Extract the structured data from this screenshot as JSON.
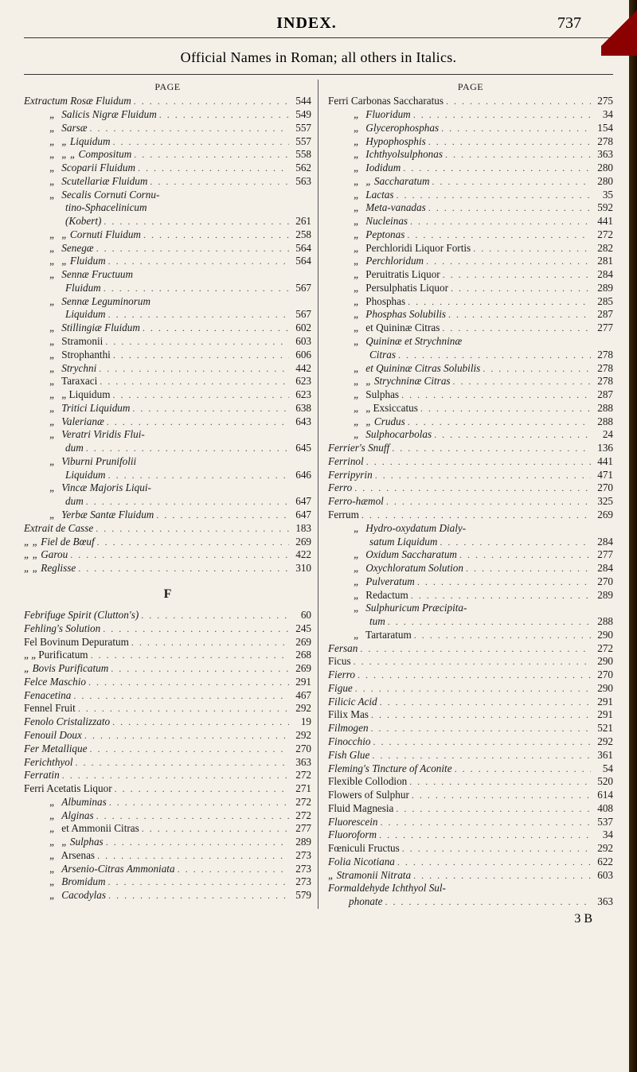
{
  "header": {
    "title": "INDEX.",
    "page": "737"
  },
  "subtitle": "Official Names in Roman; all others in Italics.",
  "page_head": "PAGE",
  "signature": "3 B",
  "section_letter": "F",
  "left_col": [
    {
      "t": "head",
      "text": "PAGE"
    },
    {
      "t": "e",
      "label": "Extractum Rosæ Fluidum",
      "italic": true,
      "p": "544",
      "ind": 0
    },
    {
      "t": "e",
      "label": "Salicis Nigræ Fluidum",
      "italic": true,
      "p": "549",
      "ind": 1,
      "ditto": true
    },
    {
      "t": "e",
      "label": "Sarsæ",
      "italic": true,
      "p": "557",
      "ind": 1,
      "ditto": true
    },
    {
      "t": "e",
      "label": "„   Liquidum",
      "italic": true,
      "p": "557",
      "ind": 1,
      "ditto": true
    },
    {
      "t": "e",
      "label": "„   „  Compositum",
      "italic": true,
      "p": "558",
      "ind": 1,
      "ditto": true
    },
    {
      "t": "e",
      "label": "Scoparii Fluidum",
      "italic": true,
      "p": "562",
      "ind": 1,
      "ditto": true
    },
    {
      "t": "e",
      "label": "Scutellariæ Fluidum",
      "italic": true,
      "p": "563",
      "ind": 1,
      "ditto": true
    },
    {
      "t": "e",
      "label": "Secalis Cornuti Cornu-",
      "italic": true,
      "p": "",
      "ind": 1,
      "ditto": true,
      "nodots": true
    },
    {
      "t": "e",
      "label": "tino-Sphacelinicum",
      "italic": true,
      "p": "",
      "ind": 2,
      "nodots": true
    },
    {
      "t": "e",
      "label": "(Kobert)",
      "italic": true,
      "p": "261",
      "ind": 2
    },
    {
      "t": "e",
      "label": "„  Cornuti Fluidum",
      "italic": true,
      "p": "258",
      "ind": 1,
      "ditto": true
    },
    {
      "t": "e",
      "label": "Senegæ",
      "italic": true,
      "p": "564",
      "ind": 1,
      "ditto": true
    },
    {
      "t": "e",
      "label": "„   Fluidum",
      "italic": true,
      "p": "564",
      "ind": 1,
      "ditto": true
    },
    {
      "t": "e",
      "label": "Sennæ Fructuum",
      "italic": true,
      "p": "",
      "ind": 1,
      "ditto": true,
      "nodots": true
    },
    {
      "t": "e",
      "label": "Fluidum",
      "italic": true,
      "p": "567",
      "ind": 2
    },
    {
      "t": "e",
      "label": "Sennæ Leguminorum",
      "italic": true,
      "p": "",
      "ind": 1,
      "ditto": true,
      "nodots": true
    },
    {
      "t": "e",
      "label": "Liquidum",
      "italic": true,
      "p": "567",
      "ind": 2
    },
    {
      "t": "e",
      "label": "Stillingiæ Fluidum",
      "italic": true,
      "p": "602",
      "ind": 1,
      "ditto": true
    },
    {
      "t": "e",
      "label": "Stramonii",
      "p": "603",
      "ind": 1,
      "ditto": true
    },
    {
      "t": "e",
      "label": "Strophanthi",
      "p": "606",
      "ind": 1,
      "ditto": true
    },
    {
      "t": "e",
      "label": "Strychni",
      "italic": true,
      "p": "442",
      "ind": 1,
      "ditto": true
    },
    {
      "t": "e",
      "label": "Taraxaci",
      "p": "623",
      "ind": 1,
      "ditto": true
    },
    {
      "t": "e",
      "label": "„   Liquidum",
      "p": "623",
      "ind": 1,
      "ditto": true
    },
    {
      "t": "e",
      "label": "Tritici Liquidum",
      "italic": true,
      "p": "638",
      "ind": 1,
      "ditto": true
    },
    {
      "t": "e",
      "label": "Valerianæ",
      "italic": true,
      "p": "643",
      "ind": 1,
      "ditto": true
    },
    {
      "t": "e",
      "label": "Veratri Viridis Flui-",
      "italic": true,
      "p": "",
      "ind": 1,
      "ditto": true,
      "nodots": true
    },
    {
      "t": "e",
      "label": "dum",
      "italic": true,
      "p": "645",
      "ind": 2
    },
    {
      "t": "e",
      "label": "Viburni Prunifolii",
      "italic": true,
      "p": "",
      "ind": 1,
      "ditto": true,
      "nodots": true
    },
    {
      "t": "e",
      "label": "Liquidum",
      "italic": true,
      "p": "646",
      "ind": 2
    },
    {
      "t": "e",
      "label": "Vincæ Majoris Liqui-",
      "italic": true,
      "p": "",
      "ind": 1,
      "ditto": true,
      "nodots": true
    },
    {
      "t": "e",
      "label": "dum",
      "italic": true,
      "p": "647",
      "ind": 2
    },
    {
      "t": "e",
      "label": "Yerbæ Santæ Fluidum",
      "italic": true,
      "p": "647",
      "ind": 1,
      "ditto": true
    },
    {
      "t": "e",
      "label": "Extrait de Casse",
      "italic": true,
      "p": "183",
      "ind": 0
    },
    {
      "t": "e",
      "label": "„   „  Fiel de Bœuf",
      "italic": true,
      "p": "269",
      "ind": 0
    },
    {
      "t": "e",
      "label": "„   „  Garou",
      "italic": true,
      "p": "422",
      "ind": 0
    },
    {
      "t": "e",
      "label": "„   „  Reglisse",
      "italic": true,
      "p": "310",
      "ind": 0
    },
    {
      "t": "letter",
      "text": "F"
    },
    {
      "t": "e",
      "label": "Febrifuge Spirit (Clutton's)",
      "italic": true,
      "p": "60",
      "ind": 0
    },
    {
      "t": "e",
      "label": "Fehling's Solution",
      "italic": true,
      "p": "245",
      "ind": 0
    },
    {
      "t": "e",
      "label": "Fel Bovinum Depuratum",
      "italicpart": "Depuratum",
      "p": "269",
      "ind": 0
    },
    {
      "t": "e",
      "label": "„    „   Purificatum",
      "p": "268",
      "ind": 0
    },
    {
      "t": "e",
      "label": "„  Bovis Purificatum",
      "italic": true,
      "p": "269",
      "ind": 0
    },
    {
      "t": "e",
      "label": "Felce Maschio",
      "italic": true,
      "p": "291",
      "ind": 0
    },
    {
      "t": "e",
      "label": "Fenacetina",
      "italic": true,
      "p": "467",
      "ind": 0
    },
    {
      "t": "e",
      "label": "Fennel Fruit",
      "p": "292",
      "ind": 0
    },
    {
      "t": "e",
      "label": "Fenolo Cristalizzato",
      "italic": true,
      "p": "19",
      "ind": 0
    },
    {
      "t": "e",
      "label": "Fenouil Doux",
      "italic": true,
      "p": "292",
      "ind": 0
    },
    {
      "t": "e",
      "label": "Fer Metallique",
      "italic": true,
      "p": "270",
      "ind": 0
    },
    {
      "t": "e",
      "label": "Ferichthyol",
      "italic": true,
      "p": "363",
      "ind": 0
    },
    {
      "t": "e",
      "label": "Ferratin",
      "italic": true,
      "p": "272",
      "ind": 0
    },
    {
      "t": "e",
      "label": "Ferri Acetatis Liquor",
      "p": "271",
      "ind": 0
    },
    {
      "t": "e",
      "label": "Albuminas",
      "italic": true,
      "p": "272",
      "ind": 1,
      "ditto": true
    },
    {
      "t": "e",
      "label": "Alginas",
      "italic": true,
      "p": "272",
      "ind": 1,
      "ditto": true
    },
    {
      "t": "e",
      "label": "et Ammonii Citras",
      "p": "277",
      "ind": 1,
      "ditto": true
    },
    {
      "t": "e",
      "label": "„    Sulphas",
      "italic": true,
      "p": "289",
      "ind": 1,
      "ditto": true
    },
    {
      "t": "e",
      "label": "Arsenas",
      "p": "273",
      "ind": 1,
      "ditto": true
    },
    {
      "t": "e",
      "label": "Arsenio-Citras Ammoniata",
      "italic": true,
      "p": "273",
      "ind": 1,
      "ditto": true
    },
    {
      "t": "e",
      "label": "Bromidum",
      "italic": true,
      "p": "273",
      "ind": 1,
      "ditto": true
    },
    {
      "t": "e",
      "label": "Cacodylas",
      "italic": true,
      "p": "579",
      "ind": 1,
      "ditto": true
    }
  ],
  "right_col": [
    {
      "t": "head",
      "text": "PAGE"
    },
    {
      "t": "e",
      "label": "Ferri Carbonas Saccharatus",
      "p": "275",
      "ind": 0
    },
    {
      "t": "e",
      "label": "Fluoridum",
      "italic": true,
      "p": "34",
      "ind": 1,
      "ditto": true
    },
    {
      "t": "e",
      "label": "Glycerophosphas",
      "italic": true,
      "p": "154",
      "ind": 1,
      "ditto": true
    },
    {
      "t": "e",
      "label": "Hypophosphis",
      "italic": true,
      "p": "278",
      "ind": 1,
      "ditto": true
    },
    {
      "t": "e",
      "label": "Ichthyolsulphonas",
      "italic": true,
      "p": "363",
      "ind": 1,
      "ditto": true
    },
    {
      "t": "e",
      "label": "Iodidum",
      "italic": true,
      "p": "280",
      "ind": 1,
      "ditto": true
    },
    {
      "t": "e",
      "label": "„   Saccharatum",
      "italic": true,
      "p": "280",
      "ind": 1,
      "ditto": true
    },
    {
      "t": "e",
      "label": "Lactas",
      "italic": true,
      "p": "35",
      "ind": 1,
      "ditto": true
    },
    {
      "t": "e",
      "label": "Meta-vanadas",
      "italic": true,
      "p": "592",
      "ind": 1,
      "ditto": true
    },
    {
      "t": "e",
      "label": "Nucleinas",
      "italic": true,
      "p": "441",
      "ind": 1,
      "ditto": true
    },
    {
      "t": "e",
      "label": "Peptonas",
      "italic": true,
      "p": "272",
      "ind": 1,
      "ditto": true
    },
    {
      "t": "e",
      "label": "Perchloridi Liquor Fortis",
      "p": "282",
      "ind": 1,
      "ditto": true
    },
    {
      "t": "e",
      "label": "Perchloridum",
      "italic": true,
      "p": "281",
      "ind": 1,
      "ditto": true
    },
    {
      "t": "e",
      "label": "Peruitratis Liquor",
      "p": "284",
      "ind": 1,
      "ditto": true
    },
    {
      "t": "e",
      "label": "Persulphatis Liquor",
      "p": "289",
      "ind": 1,
      "ditto": true
    },
    {
      "t": "e",
      "label": "Phosphas",
      "p": "285",
      "ind": 1,
      "ditto": true
    },
    {
      "t": "e",
      "label": "Phosphas Solubilis",
      "italic": true,
      "p": "287",
      "ind": 1,
      "ditto": true
    },
    {
      "t": "e",
      "label": "et Quininæ Citras",
      "p": "277",
      "ind": 1,
      "ditto": true
    },
    {
      "t": "e",
      "label": "Quininæ et Strychninæ",
      "italic": true,
      "p": "",
      "ind": 1,
      "ditto": true,
      "nodots": true
    },
    {
      "t": "e",
      "label": "Citras",
      "italic": true,
      "p": "278",
      "ind": 2
    },
    {
      "t": "e",
      "label": "et Quininæ Citras Solubilis",
      "italic": true,
      "p": "278",
      "ind": 1,
      "ditto": true
    },
    {
      "t": "e",
      "label": "„ Strychninæ Citras",
      "italic": true,
      "p": "278",
      "ind": 1,
      "ditto": true
    },
    {
      "t": "e",
      "label": "Sulphas",
      "p": "287",
      "ind": 1,
      "ditto": true
    },
    {
      "t": "e",
      "label": "„   Exsiccatus",
      "p": "288",
      "ind": 1,
      "ditto": true
    },
    {
      "t": "e",
      "label": "„   Crudus",
      "italic": true,
      "p": "288",
      "ind": 1,
      "ditto": true
    },
    {
      "t": "e",
      "label": "Sulphocarbolas",
      "italic": true,
      "p": "24",
      "ind": 1,
      "ditto": true
    },
    {
      "t": "e",
      "label": "Ferrier's Snuff",
      "italic": true,
      "p": "136",
      "ind": 0
    },
    {
      "t": "e",
      "label": "Ferrinol",
      "italic": true,
      "p": "441",
      "ind": 0
    },
    {
      "t": "e",
      "label": "Ferripyrin",
      "italic": true,
      "p": "471",
      "ind": 0
    },
    {
      "t": "e",
      "label": "Ferro",
      "italic": true,
      "p": "270",
      "ind": 0
    },
    {
      "t": "e",
      "label": "Ferro-hæmol",
      "italic": true,
      "p": "325",
      "ind": 0
    },
    {
      "t": "e",
      "label": "Ferrum",
      "p": "269",
      "ind": 0
    },
    {
      "t": "e",
      "label": "Hydro-oxydatum Dialy-",
      "italic": true,
      "p": "",
      "ind": 1,
      "ditto": true,
      "nodots": true
    },
    {
      "t": "e",
      "label": "satum Liquidum",
      "italic": true,
      "p": "284",
      "ind": 2
    },
    {
      "t": "e",
      "label": "Oxidum Saccharatum",
      "italic": true,
      "p": "277",
      "ind": 1,
      "ditto": true
    },
    {
      "t": "e",
      "label": "Oxychloratum Solution",
      "italic": true,
      "p": "284",
      "ind": 1,
      "ditto": true
    },
    {
      "t": "e",
      "label": "Pulveratum",
      "italic": true,
      "p": "270",
      "ind": 1,
      "ditto": true
    },
    {
      "t": "e",
      "label": "Redactum",
      "p": "289",
      "ind": 1,
      "ditto": true
    },
    {
      "t": "e",
      "label": "Sulphuricum Præcipita-",
      "italic": true,
      "p": "",
      "ind": 1,
      "ditto": true,
      "nodots": true
    },
    {
      "t": "e",
      "label": "tum",
      "italic": true,
      "p": "288",
      "ind": 2
    },
    {
      "t": "e",
      "label": "Tartaratum",
      "p": "290",
      "ind": 1,
      "ditto": true
    },
    {
      "t": "e",
      "label": "Fersan",
      "italic": true,
      "p": "272",
      "ind": 0
    },
    {
      "t": "e",
      "label": "Ficus",
      "p": "290",
      "ind": 0
    },
    {
      "t": "e",
      "label": "Fierro",
      "italic": true,
      "p": "270",
      "ind": 0
    },
    {
      "t": "e",
      "label": "Figue",
      "italic": true,
      "p": "290",
      "ind": 0
    },
    {
      "t": "e",
      "label": "Filicic Acid",
      "italic": true,
      "p": "291",
      "ind": 0
    },
    {
      "t": "e",
      "label": "Filix Mas",
      "p": "291",
      "ind": 0
    },
    {
      "t": "e",
      "label": "Filmogen",
      "italic": true,
      "p": "521",
      "ind": 0
    },
    {
      "t": "e",
      "label": "Finocchio",
      "italic": true,
      "p": "292",
      "ind": 0
    },
    {
      "t": "e",
      "label": "Fish Glue",
      "italic": true,
      "p": "361",
      "ind": 0
    },
    {
      "t": "e",
      "label": "Fleming's Tincture of Aconite",
      "italic": true,
      "p": "54",
      "ind": 0
    },
    {
      "t": "e",
      "label": "Flexible Collodion",
      "p": "520",
      "ind": 0
    },
    {
      "t": "e",
      "label": "Flowers of Sulphur",
      "p": "614",
      "ind": 0
    },
    {
      "t": "e",
      "label": "Fluid Magnesia",
      "p": "408",
      "ind": 0
    },
    {
      "t": "e",
      "label": "Fluorescein",
      "italic": true,
      "p": "537",
      "ind": 0
    },
    {
      "t": "e",
      "label": "Fluoroform",
      "italic": true,
      "p": "34",
      "ind": 0
    },
    {
      "t": "e",
      "label": "Fœniculi Fructus",
      "p": "292",
      "ind": 0
    },
    {
      "t": "e",
      "label": "Folia Nicotiana",
      "italic": true,
      "p": "622",
      "ind": 0
    },
    {
      "t": "e",
      "label": "„   Stramonii Nitrata",
      "italic": true,
      "p": "603",
      "ind": 0
    },
    {
      "t": "e",
      "label": "Formaldehyde  Ichthyol  Sul-",
      "italic": true,
      "p": "",
      "ind": 0,
      "nodots": true
    },
    {
      "t": "e",
      "label": "phonate",
      "italic": true,
      "p": "363",
      "ind": 1
    }
  ]
}
